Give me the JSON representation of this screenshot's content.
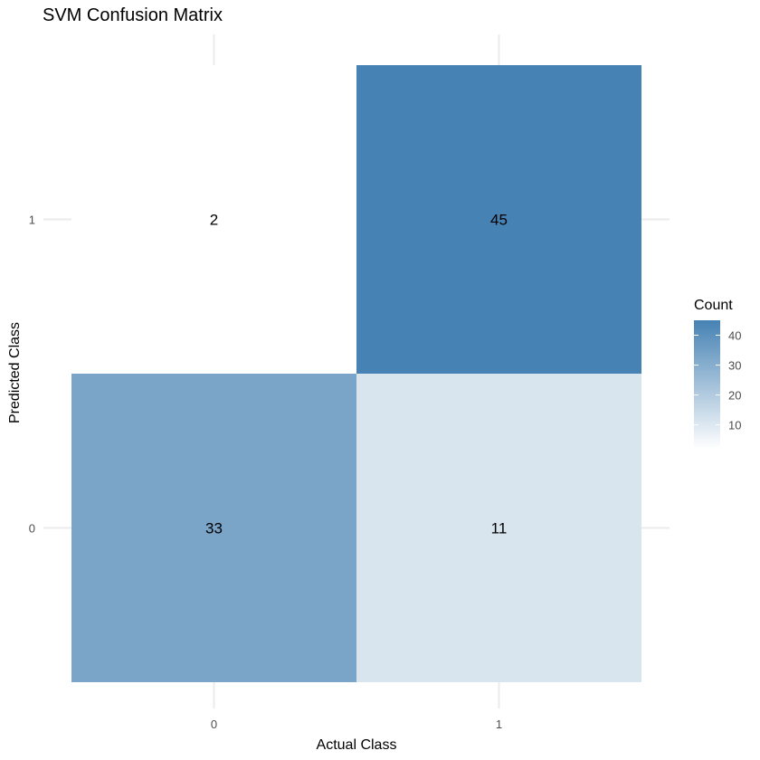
{
  "chart_data": {
    "type": "heatmap",
    "title": "SVM Confusion Matrix",
    "xlabel": "Actual Class",
    "ylabel": "Predicted Class",
    "x_categories": [
      "0",
      "1"
    ],
    "y_categories": [
      "0",
      "1"
    ],
    "cells": [
      {
        "x": "0",
        "y": "1",
        "value": 2
      },
      {
        "x": "1",
        "y": "1",
        "value": 45
      },
      {
        "x": "0",
        "y": "0",
        "value": 33
      },
      {
        "x": "1",
        "y": "0",
        "value": 11
      }
    ],
    "legend": {
      "title": "Count",
      "ticks": [
        10,
        20,
        30,
        40
      ],
      "range": [
        2,
        45
      ],
      "placement": "right"
    },
    "colors": {
      "low": "#ffffff",
      "high": "#4682b4",
      "grid": "#ebebeb"
    },
    "grid": true
  }
}
